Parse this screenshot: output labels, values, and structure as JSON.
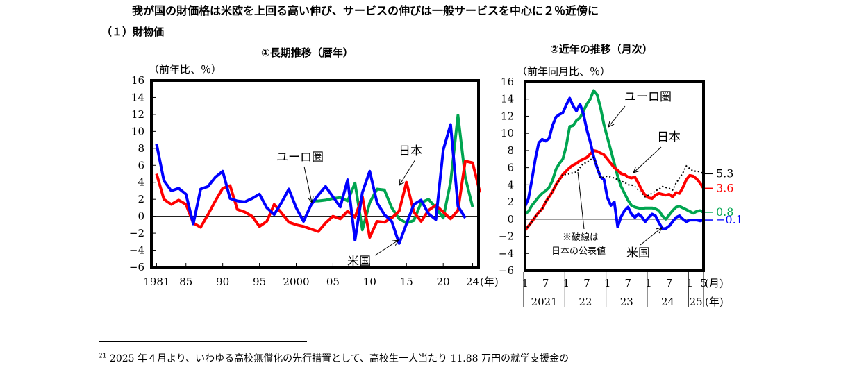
{
  "headline": "我が国の財価格は米欧を上回る高い伸び、サービスの伸びは一般サービスを中心に２％近傍に",
  "subhead": "（１）財物価",
  "footnote": {
    "number": "21",
    "text": "2025 年４月より、いわゆる高校無償化の先行措置として、高校生一人当たり 11.88 万円の就学支援金の"
  },
  "colors": {
    "japan": "#ff0000",
    "us": "#0000ff",
    "euro": "#00a550",
    "japan_official": "#000000"
  },
  "chart_data": [
    {
      "type": "line",
      "title": "①長期推移（暦年）",
      "unit_label": "（前年比、％）",
      "xlabel_unit": "(年)",
      "x_tick_labels": [
        "1981",
        "85",
        "90",
        "95",
        "2000",
        "05",
        "10",
        "15",
        "20",
        "24"
      ],
      "x_tick_values": [
        1981,
        1985,
        1990,
        1995,
        2000,
        2005,
        2010,
        2015,
        2020,
        2024
      ],
      "xlim": [
        1980.3,
        2024.8
      ],
      "ylim": [
        -6,
        16
      ],
      "y_ticks": [
        -6,
        -4,
        -2,
        0,
        2,
        4,
        6,
        8,
        10,
        12,
        14,
        16
      ],
      "annotations": {
        "euro": "ユーロ圏",
        "japan": "日本",
        "us": "米国"
      },
      "series": [
        {
          "name": "日本",
          "key": "japan",
          "x_start": 1981,
          "values": [
            5.0,
            2.0,
            1.4,
            1.9,
            1.4,
            -0.8,
            -1.3,
            0.2,
            1.8,
            3.3,
            3.6,
            0.8,
            0.5,
            0.0,
            -1.2,
            -0.6,
            1.4,
            0.4,
            -0.7,
            -1.0,
            -1.2,
            -1.5,
            -1.8,
            -0.8,
            0.0,
            -0.3,
            0.6,
            -0.1,
            2.3,
            -2.5,
            -0.6,
            -0.7,
            -0.2,
            0.6,
            4.0,
            0.5,
            -0.6,
            0.7,
            1.3,
            0.5,
            -0.3,
            0.7,
            6.5,
            6.3,
            2.8
          ]
        },
        {
          "name": "米国",
          "key": "us",
          "x_start": 1981,
          "values": [
            8.5,
            4.2,
            3.0,
            3.3,
            2.6,
            -0.9,
            3.2,
            3.5,
            4.6,
            5.3,
            2.1,
            1.8,
            1.7,
            2.1,
            2.6,
            1.0,
            0.2,
            1.6,
            3.2,
            1.0,
            -0.6,
            1.3,
            2.5,
            3.5,
            2.3,
            1.1,
            4.3,
            -2.8,
            2.8,
            5.3,
            1.6,
            0.2,
            -0.6,
            -3.2,
            -0.9,
            1.4,
            1.9,
            0.3,
            -0.4,
            7.8,
            10.8,
            1.2,
            -0.2
          ]
        },
        {
          "name": "ユーロ圏",
          "key": "euro",
          "x_start": 2002,
          "values": [
            1.8,
            1.8,
            1.9,
            2.1,
            2.2,
            1.8,
            3.9,
            -1.6,
            1.6,
            3.2,
            3.1,
            1.0,
            -0.3,
            -0.8,
            -0.5,
            1.6,
            2.0,
            1.0,
            -0.2,
            4.0,
            11.9,
            4.6,
            1.1
          ]
        }
      ]
    },
    {
      "type": "line",
      "title": "②近年の推移（月次）",
      "unit_label": "（前年同月比、％）",
      "ylim": [
        -6,
        16
      ],
      "y_ticks": [
        -6,
        -4,
        -2,
        0,
        2,
        4,
        6,
        8,
        10,
        12,
        14,
        16
      ],
      "x_month_ticks": [
        "1",
        "7",
        "1",
        "7",
        "1",
        "7",
        "1",
        "7",
        "1",
        "5"
      ],
      "month_unit": "(月)",
      "years": [
        "2021",
        "22",
        "23",
        "24",
        "25"
      ],
      "year_unit": "(年)",
      "annotations": {
        "euro": "ユーロ圏",
        "japan": "日本",
        "us": "米国",
        "note_line1": "※破線は",
        "note_line2": "日本の公表値"
      },
      "latest_values": [
        {
          "key": "us",
          "label": "-0.1",
          "value": -0.1
        },
        {
          "key": "euro",
          "label": "0.8",
          "value": 0.8
        },
        {
          "key": "japan",
          "label": "3.6",
          "value": 3.6
        },
        {
          "key": "japan_official",
          "label": "5.3",
          "value": 5.3
        }
      ],
      "series": [
        {
          "name": "日本",
          "key": "japan",
          "values": [
            -1.3,
            -0.8,
            -0.3,
            0.3,
            0.8,
            1.2,
            2.0,
            2.6,
            3.2,
            4.0,
            4.6,
            5.2,
            5.6,
            6.0,
            6.3,
            6.5,
            6.8,
            7.0,
            7.2,
            7.6,
            8.0,
            7.9,
            7.7,
            7.5,
            7.0,
            6.5,
            6.0,
            5.7,
            5.3,
            5.2,
            4.9,
            4.8,
            4.9,
            4.2,
            3.4,
            2.8,
            2.5,
            2.4,
            2.8,
            3.0,
            2.9,
            2.8,
            2.9,
            2.6,
            3.1,
            3.0,
            3.7,
            4.6,
            5.1,
            5.0,
            4.7,
            4.2,
            3.6
          ]
        },
        {
          "name": "日本の公表値",
          "key": "japan_official",
          "dashed": true,
          "values": [
            -1.3,
            -0.8,
            -0.3,
            0.3,
            0.8,
            1.2,
            2.0,
            2.6,
            3.2,
            4.0,
            4.6,
            5.2,
            5.2,
            5.3,
            5.4,
            5.5,
            6.0,
            6.5,
            6.6,
            6.9,
            7.2,
            6.1,
            4.8,
            4.9,
            5.0,
            4.9,
            4.8,
            4.6,
            4.4,
            4.3,
            4.0,
            4.0,
            3.8,
            3.4,
            3.0,
            2.6,
            2.8,
            3.0,
            3.3,
            3.5,
            3.8,
            3.7,
            3.6,
            3.4,
            4.2,
            4.8,
            5.4,
            6.2,
            5.9,
            5.6,
            5.6,
            5.5,
            5.3
          ]
        },
        {
          "name": "米国",
          "key": "us",
          "values": [
            1.5,
            2.4,
            4.6,
            7.0,
            8.9,
            9.3,
            9.1,
            9.4,
            10.9,
            11.9,
            12.2,
            12.4,
            13.3,
            14.1,
            13.2,
            12.6,
            13.4,
            12.3,
            10.4,
            9.0,
            7.3,
            6.0,
            4.9,
            4.6,
            2.5,
            1.6,
            2.0,
            -0.9,
            0.3,
            1.0,
            1.4,
            0.6,
            0.2,
            0.6,
            0.3,
            -0.3,
            0.2,
            0.6,
            0.4,
            -0.4,
            -1.1,
            -1.1,
            -0.8,
            -0.3,
            0.2,
            0.4,
            0.0,
            -0.3,
            -0.1,
            -0.1,
            -0.1,
            -0.2,
            -0.1
          ]
        },
        {
          "name": "ユーロ圏",
          "key": "euro",
          "values": [
            0.6,
            0.9,
            1.6,
            2.1,
            2.6,
            3.0,
            3.3,
            3.7,
            4.5,
            5.8,
            6.5,
            7.0,
            8.5,
            10.8,
            10.9,
            11.5,
            11.8,
            12.6,
            13.4,
            14.0,
            15.0,
            14.5,
            13.0,
            11.0,
            9.5,
            8.0,
            6.5,
            5.0,
            3.8,
            3.0,
            2.2,
            1.6,
            1.4,
            1.3,
            1.2,
            1.3,
            1.3,
            1.3,
            1.2,
            1.0,
            0.4,
            0.0,
            0.5,
            1.0,
            1.4,
            1.5,
            1.3,
            1.1,
            0.9,
            0.7,
            0.9,
            1.0,
            0.8
          ]
        }
      ]
    }
  ]
}
